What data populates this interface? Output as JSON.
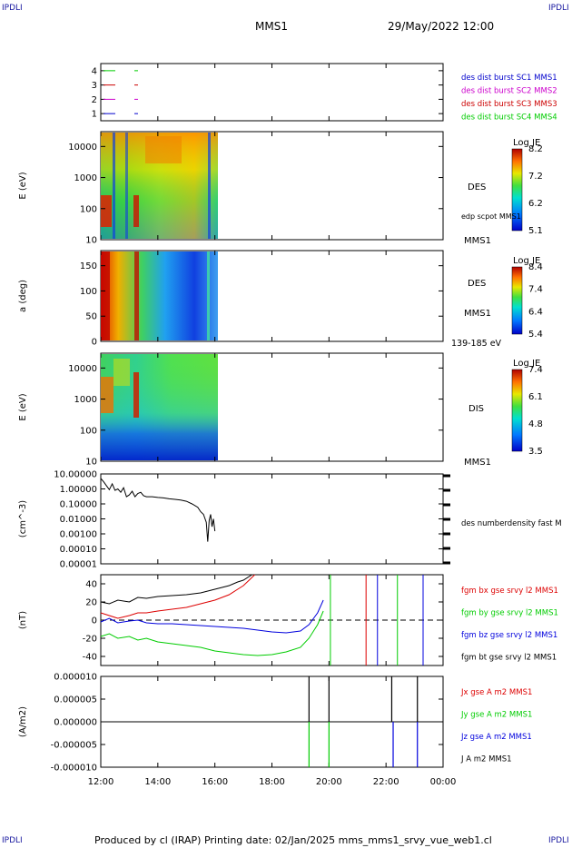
{
  "corner_labels": {
    "top_left": "IPDLI",
    "top_right": "IPDLI",
    "bottom_left": "IPDLI",
    "bottom_right": "IPDLI"
  },
  "header": {
    "spacecraft": "MMS1",
    "datetime": "29/May/2022 12:00"
  },
  "footer": {
    "text": "Produced by cl (IRAP)   Printing date: 02/Jan/2025   mms_mms1_srvy_vue_web1.cl"
  },
  "colors": {
    "mms1": "#0000cc",
    "mms2": "#cc00cc",
    "mms3": "#cc0000",
    "mms4": "#00cc00",
    "bx": "#dd0000",
    "by": "#00cc00",
    "bz": "#0000dd",
    "bt": "#000000"
  },
  "chart_data": [
    {
      "type": "line",
      "panel": "status",
      "yticks": [
        "1",
        "2",
        "3",
        "4"
      ],
      "ylim": [
        0.5,
        4.5
      ],
      "legend": [
        {
          "name": "des dist burst SC1 MMS1",
          "color": "#0000cc"
        },
        {
          "name": "des dist burst SC2 MMS2",
          "color": "#cc00cc"
        },
        {
          "name": "des dist burst SC3 MMS3",
          "color": "#cc0000"
        },
        {
          "name": "des dist burst SC4 MMS4",
          "color": "#00cc00"
        }
      ]
    },
    {
      "type": "heatmap",
      "panel": "des_energy",
      "ylabel": "E (eV)",
      "yscale": "log",
      "ylim": [
        10,
        30000
      ],
      "yticks": [
        "10",
        "100",
        "1000",
        "10000"
      ],
      "side_labels": [
        "DES",
        "edp scpot MMS1",
        "MMS1"
      ],
      "colorbar": {
        "title": "Log JE",
        "ticks": [
          "8.2",
          "7.2",
          "6.2",
          "5.1"
        ]
      },
      "data_coverage_hours": [
        0.0,
        4.1
      ]
    },
    {
      "type": "heatmap",
      "panel": "des_pitch",
      "ylabel": "a (deg)",
      "ylim": [
        0,
        180
      ],
      "yticks": [
        "0",
        "50",
        "100",
        "150"
      ],
      "side_labels": [
        "DES",
        "MMS1",
        "139-185 eV"
      ],
      "colorbar": {
        "title": "Log JE",
        "ticks": [
          "8.4",
          "7.4",
          "6.4",
          "5.4"
        ]
      },
      "data_coverage_hours": [
        0.0,
        4.1
      ]
    },
    {
      "type": "heatmap",
      "panel": "dis_energy",
      "ylabel": "E (eV)",
      "yscale": "log",
      "ylim": [
        10,
        30000
      ],
      "yticks": [
        "10",
        "100",
        "1000",
        "10000"
      ],
      "side_labels": [
        "DIS",
        "MMS1"
      ],
      "colorbar": {
        "title": "Log JE",
        "ticks": [
          "7.4",
          "6.1",
          "4.8",
          "3.5"
        ]
      },
      "data_coverage_hours": [
        0.0,
        4.1
      ]
    },
    {
      "type": "line",
      "panel": "density",
      "ylabel": "(cm^-3)",
      "yscale": "log",
      "ylim": [
        1e-05,
        10
      ],
      "yticks": [
        "10.00000",
        "1.00000",
        "0.10000",
        "0.01000",
        "0.00100",
        "0.00010",
        "0.00001"
      ],
      "series": [
        {
          "name": "des numberdensity fast M",
          "color": "#000000",
          "x": [
            0.0,
            0.1,
            0.2,
            0.3,
            0.4,
            0.5,
            0.6,
            0.7,
            0.8,
            0.9,
            1.0,
            1.1,
            1.2,
            1.3,
            1.4,
            1.5,
            1.6,
            1.8,
            2.0,
            2.2,
            2.4,
            2.6,
            2.8,
            3.0,
            3.2,
            3.4,
            3.5,
            3.6,
            3.7,
            3.75,
            3.8,
            3.85,
            3.9,
            3.95,
            4.0
          ],
          "y": [
            5,
            3,
            1.6,
            0.9,
            2.2,
            0.8,
            1,
            0.6,
            1.2,
            0.3,
            0.4,
            0.7,
            0.3,
            0.5,
            0.6,
            0.35,
            0.3,
            0.3,
            0.27,
            0.25,
            0.22,
            0.2,
            0.18,
            0.15,
            0.1,
            0.06,
            0.03,
            0.02,
            0.006,
            0.0003,
            0.008,
            0.02,
            0.003,
            0.01,
            0.0015
          ]
        }
      ]
    },
    {
      "type": "line",
      "panel": "magnetic_field",
      "ylabel": "(nT)",
      "ylim": [
        -50,
        50
      ],
      "yticks": [
        "40",
        "20",
        "0",
        "-20",
        "-40"
      ],
      "series": [
        {
          "name": "fgm bx gse srvy l2 MMS1",
          "color": "#dd0000",
          "x": [
            0,
            0.3,
            0.6,
            1,
            1.3,
            1.6,
            2,
            2.5,
            3,
            3.5,
            4,
            4.5,
            4.8,
            5.0,
            5.2,
            5.4
          ],
          "y": [
            8,
            5,
            2,
            5,
            8,
            8,
            10,
            12,
            14,
            18,
            22,
            28,
            34,
            38,
            44,
            50
          ]
        },
        {
          "name": "fgm by gse srvy l2 MMS1",
          "color": "#00cc00",
          "x": [
            0,
            0.3,
            0.6,
            1,
            1.3,
            1.6,
            2,
            2.5,
            3,
            3.5,
            4,
            4.5,
            5,
            5.5,
            6,
            6.5,
            7,
            7.3,
            7.6,
            7.8
          ],
          "y": [
            -18,
            -15,
            -20,
            -18,
            -22,
            -20,
            -24,
            -26,
            -28,
            -30,
            -34,
            -36,
            -38,
            -39,
            -38,
            -35,
            -30,
            -20,
            -5,
            10
          ]
        },
        {
          "name": "fgm bz gse srvy l2 MMS1",
          "color": "#0000dd",
          "x": [
            0,
            0.3,
            0.6,
            1,
            1.3,
            1.6,
            2,
            2.5,
            3,
            3.5,
            4,
            4.5,
            5,
            5.5,
            6,
            6.5,
            7,
            7.3,
            7.6,
            7.8
          ],
          "y": [
            -2,
            2,
            -3,
            -1,
            0,
            -3,
            -4,
            -4,
            -5,
            -6,
            -7,
            -8,
            -9,
            -11,
            -13,
            -14,
            -12,
            -5,
            8,
            22
          ]
        },
        {
          "name": "fgm bt gse srvy l2 MMS1",
          "color": "#000000",
          "x": [
            0,
            0.3,
            0.6,
            1,
            1.3,
            1.6,
            2,
            2.5,
            3,
            3.5,
            4,
            4.5,
            4.8,
            5.0,
            5.2,
            5.3
          ],
          "y": [
            20,
            18,
            22,
            20,
            25,
            24,
            26,
            27,
            28,
            30,
            34,
            38,
            42,
            44,
            48,
            50
          ]
        }
      ]
    },
    {
      "type": "line",
      "panel": "current_density",
      "ylabel": "(A/m2)",
      "ylim": [
        -1e-05,
        1e-05
      ],
      "yticks": [
        "0.000010",
        "0.000005",
        "0.000000",
        "-0.000005",
        "-0.000010"
      ],
      "series": [
        {
          "name": "Jx gse A m2 MMS1",
          "color": "#dd0000"
        },
        {
          "name": "Jy gse A m2 MMS1",
          "color": "#00cc00"
        },
        {
          "name": "Jz gse A m2 MMS1",
          "color": "#0000dd"
        },
        {
          "name": "J A m2 MMS1",
          "color": "#000000"
        }
      ]
    }
  ],
  "time_axis": {
    "ticks": [
      "12:00",
      "14:00",
      "16:00",
      "18:00",
      "20:00",
      "22:00",
      "00:00"
    ],
    "range_hours": [
      0,
      12
    ]
  }
}
